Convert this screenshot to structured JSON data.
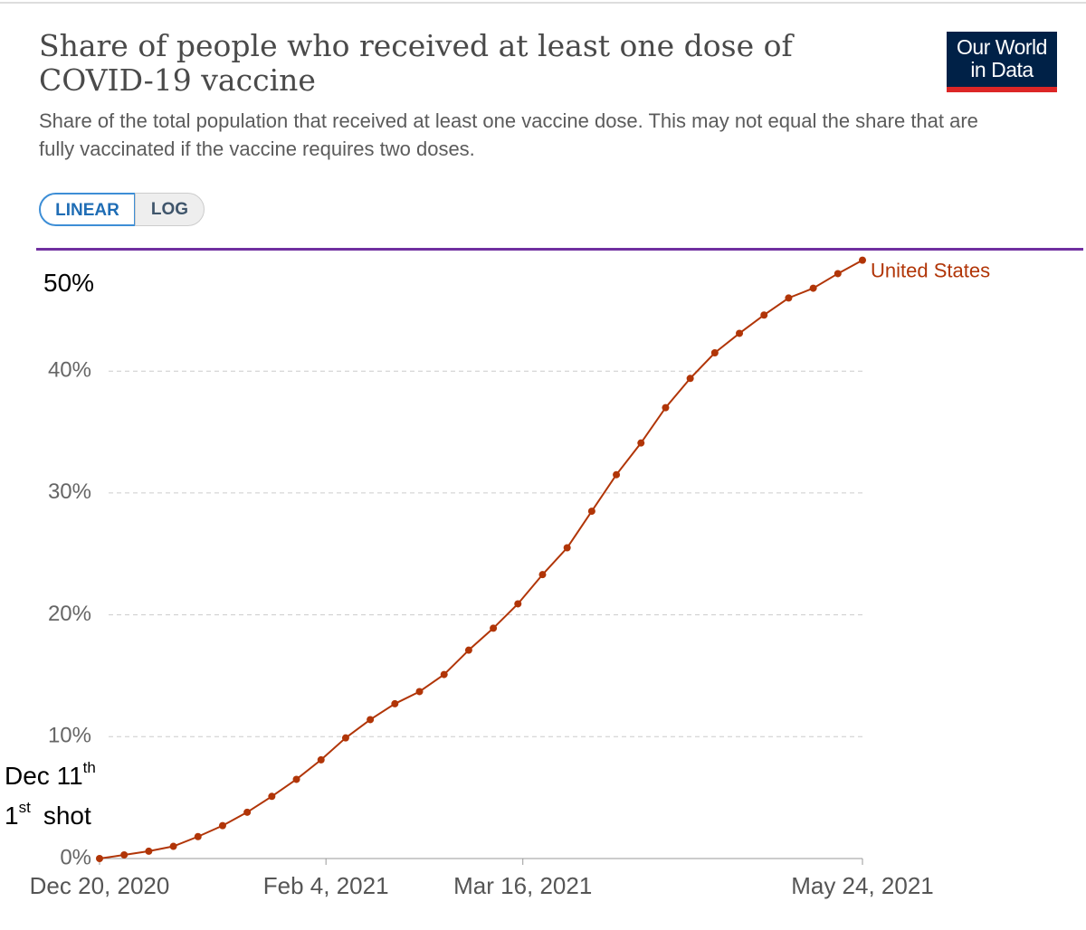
{
  "chart_data": {
    "type": "line",
    "title": "Share of people who received at least one dose of COVID-19 vaccine",
    "subtitle": "Share of the total population that received at least one vaccine dose. This may not equal the share that are fully vaccinated if the vaccine requires two doses.",
    "x": [
      "2020-12-20",
      "2020-12-25",
      "2020-12-30",
      "2021-01-04",
      "2021-01-09",
      "2021-01-14",
      "2021-01-19",
      "2021-01-24",
      "2021-01-29",
      "2021-02-03",
      "2021-02-08",
      "2021-02-13",
      "2021-02-18",
      "2021-02-23",
      "2021-02-28",
      "2021-03-05",
      "2021-03-10",
      "2021-03-15",
      "2021-03-20",
      "2021-03-25",
      "2021-03-30",
      "2021-04-04",
      "2021-04-09",
      "2021-04-14",
      "2021-04-19",
      "2021-04-24",
      "2021-04-29",
      "2021-05-04",
      "2021-05-09",
      "2021-05-14",
      "2021-05-19",
      "2021-05-24"
    ],
    "series": [
      {
        "name": "United States",
        "color": "#b13507",
        "values": [
          0.0,
          0.3,
          0.6,
          1.0,
          1.8,
          2.7,
          3.8,
          5.1,
          6.5,
          8.1,
          9.9,
          11.4,
          12.7,
          13.7,
          15.1,
          17.1,
          18.9,
          20.9,
          23.3,
          25.5,
          28.5,
          31.5,
          34.1,
          37.0,
          39.4,
          41.5,
          43.1,
          44.6,
          46.0,
          46.8,
          48.0,
          49.1
        ]
      }
    ],
    "xlim": [
      "2020-12-20",
      "2021-05-24"
    ],
    "xticks": [
      {
        "value": "2020-12-20",
        "label": "Dec 20, 2020"
      },
      {
        "value": "2021-02-04",
        "label": "Feb 4, 2021"
      },
      {
        "value": "2021-03-16",
        "label": "Mar 16, 2021"
      },
      {
        "value": "2021-05-24",
        "label": "May 24, 2021"
      }
    ],
    "ylim": [
      0,
      50
    ],
    "yticks": [
      {
        "value": 0,
        "label": "0%"
      },
      {
        "value": 10,
        "label": "10%"
      },
      {
        "value": 20,
        "label": "20%"
      },
      {
        "value": 30,
        "label": "30%"
      },
      {
        "value": 40,
        "label": "40%"
      }
    ],
    "grid": true,
    "reference_line": {
      "value": 50,
      "label": "50%",
      "color": "#7030a0"
    },
    "annotation": {
      "line1": "Dec 11",
      "line1_sup": "th",
      "line2": "1",
      "line2_sup": "st",
      "line2_rest": "shot"
    }
  },
  "ui": {
    "logo": [
      "Our World",
      "in Data"
    ],
    "buttons": [
      "LINEAR",
      "LOG"
    ]
  }
}
